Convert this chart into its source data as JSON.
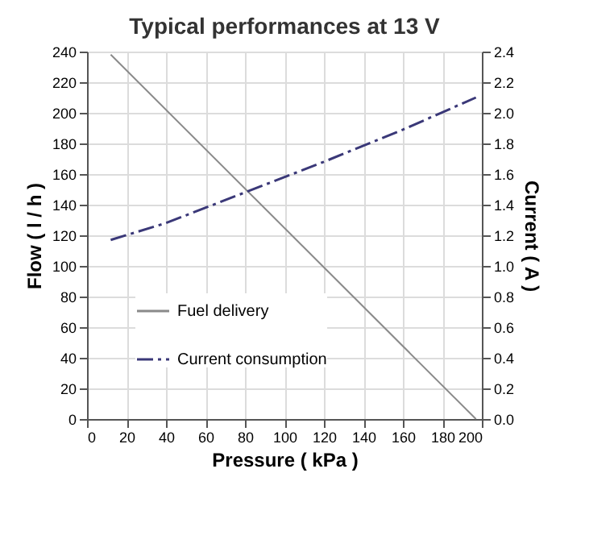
{
  "chart_data": {
    "type": "line",
    "title": "Typical performances at 13 V",
    "xlabel": "Pressure ( kPa )",
    "ylabel": "Flow ( l / h )",
    "y2label": "Current ( A )",
    "xlim": [
      0,
      200
    ],
    "xticks": [
      0,
      20,
      40,
      60,
      80,
      100,
      120,
      140,
      160,
      180,
      200
    ],
    "ylim": [
      0,
      240
    ],
    "yticks": [
      0,
      20,
      40,
      60,
      80,
      100,
      120,
      140,
      160,
      180,
      200,
      220,
      240
    ],
    "y2lim": [
      0,
      2.4
    ],
    "y2ticks": [
      {
        "value": 0,
        "label": "0.0"
      },
      0.2,
      0.4,
      0.6,
      0.8,
      {
        "value": 1,
        "label": "1.0"
      },
      1.2,
      1.4,
      1.6,
      1.8,
      {
        "value": 2,
        "label": "2.0"
      },
      2.2,
      2.4
    ],
    "grid": true,
    "legend": "bottom left",
    "marker": "none",
    "series": [
      {
        "name": "Fuel delivery",
        "color": "#8a8a8a",
        "line_style": "solid",
        "x": [
          12,
          197
        ],
        "values": [
          238,
          0
        ]
      },
      {
        "name": "Current consumption",
        "color": "#3a3878",
        "line_style": "dashed",
        "axis": "y2",
        "x": [
          12,
          40,
          80,
          120,
          160,
          197
        ],
        "values": [
          1.17,
          1.28,
          1.48,
          1.68,
          1.89,
          2.1
        ]
      }
    ]
  }
}
